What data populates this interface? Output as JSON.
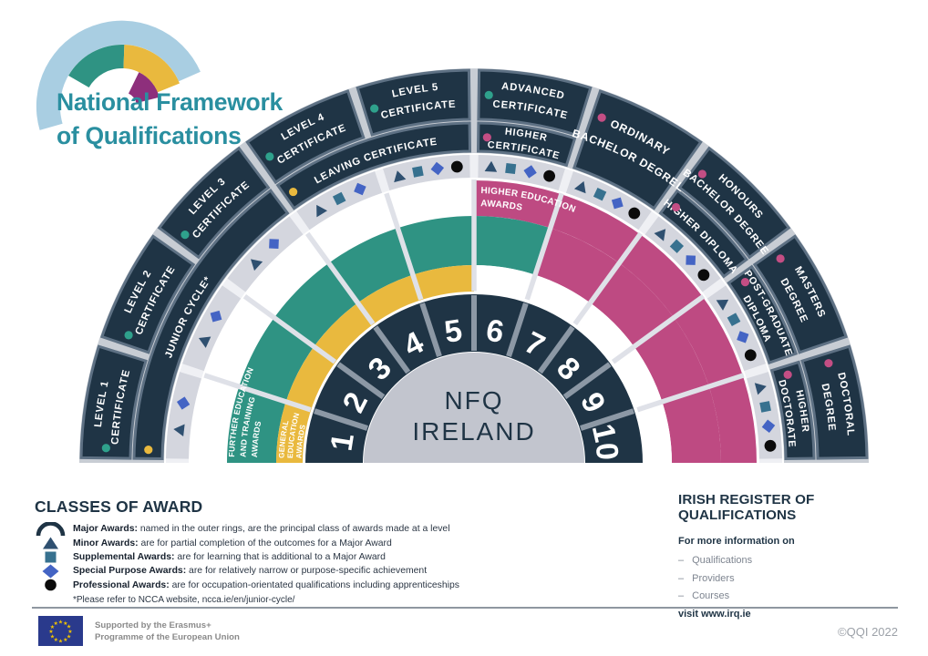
{
  "logo": {
    "title_line1": "National Framework",
    "title_line2": "of Qualifications"
  },
  "fan": {
    "center": {
      "line1": "NFQ",
      "line2": "IRELAND"
    },
    "levels": [
      "1",
      "2",
      "3",
      "4",
      "5",
      "6",
      "7",
      "8",
      "9",
      "10"
    ],
    "outer_ring": [
      {
        "label_lines": [
          "LEVEL 1",
          "CERTIFICATE"
        ],
        "level_start": 1,
        "level_end": 1,
        "dot": "teal",
        "merged": false
      },
      {
        "label_lines": [
          "LEVEL 2",
          "CERTIFICATE"
        ],
        "level_start": 2,
        "level_end": 2,
        "dot": "teal",
        "merged": false
      },
      {
        "label_lines": [
          "LEVEL 3",
          "CERTIFICATE"
        ],
        "level_start": 3,
        "level_end": 3,
        "dot": "teal",
        "merged": false
      },
      {
        "label_lines": [
          "LEVEL 4",
          "CERTIFICATE"
        ],
        "level_start": 4,
        "level_end": 4,
        "dot": "teal",
        "merged": false
      },
      {
        "label_lines": [
          "LEVEL 5",
          "CERTIFICATE"
        ],
        "level_start": 5,
        "level_end": 5,
        "dot": "teal",
        "merged": false
      },
      {
        "label_lines": [
          "ADVANCED",
          "CERTIFICATE"
        ],
        "level_start": 6,
        "level_end": 6,
        "dot": "teal",
        "merged": false
      },
      {
        "label_lines": [
          "ORDINARY",
          "BACHELOR DEGREE"
        ],
        "level_start": 7,
        "level_end": 7,
        "dot": "pink",
        "merged": true
      },
      {
        "label_lines": [
          "HONOURS",
          "BACHELOR DEGREE"
        ],
        "level_start": 8,
        "level_end": 8,
        "dot": "pink",
        "merged": false
      },
      {
        "label_lines": [
          "MASTERS",
          "DEGREE"
        ],
        "level_start": 9,
        "level_end": 9,
        "dot": "pink",
        "merged": false
      },
      {
        "label_lines": [
          "DOCTORAL",
          "DEGREE"
        ],
        "level_start": 10,
        "level_end": 10,
        "dot": "pink",
        "merged": false
      }
    ],
    "second_ring": [
      {
        "label_lines": [
          "JUNIOR CYCLE*"
        ],
        "level_start": 1,
        "level_end": 3,
        "dot": "yellow"
      },
      {
        "label_lines": [
          "LEAVING CERTIFICATE"
        ],
        "level_start": 4,
        "level_end": 5,
        "dot": "yellow"
      },
      {
        "label_lines": [
          "HIGHER",
          "CERTIFICATE"
        ],
        "level_start": 6,
        "level_end": 6,
        "dot": "pink"
      },
      {
        "label_lines": [
          "HIGHER DIPLOMA"
        ],
        "level_start": 8,
        "level_end": 8,
        "dot": "pink"
      },
      {
        "label_lines": [
          "POST-GRADUATE",
          "DIPLOMA"
        ],
        "level_start": 9,
        "level_end": 9,
        "dot": "pink"
      },
      {
        "label_lines": [
          "HIGHER",
          "DOCTORATE"
        ],
        "level_start": 10,
        "level_end": 10,
        "dot": "pink"
      }
    ],
    "bands": [
      {
        "band": "A",
        "level_start": 1,
        "level_end": 5,
        "color_key": "white",
        "label_lines": []
      },
      {
        "band": "A",
        "level_start": 6,
        "level_end": 10,
        "color_key": "magenta",
        "label_lines": [
          "HIGHER EDUCATION",
          "AWARDS"
        ]
      },
      {
        "band": "B",
        "level_start": 1,
        "level_end": 6,
        "color_key": "green",
        "label_lines": [
          "FURTHER EDUCATION",
          "AND TRAINING",
          "AWARDS"
        ]
      },
      {
        "band": "B",
        "level_start": 7,
        "level_end": 10,
        "color_key": "magenta",
        "label_lines": []
      },
      {
        "band": "C",
        "level_start": 1,
        "level_end": 5,
        "color_key": "yellow",
        "label_lines": [
          "GENERAL",
          "EDUCATION",
          "AWARDS"
        ]
      },
      {
        "band": "C",
        "level_start": 6,
        "level_end": 10,
        "color_key": "white",
        "label_lines": []
      }
    ],
    "level_awards": [
      {
        "level": 1,
        "icons": [
          "minor",
          "special"
        ]
      },
      {
        "level": 2,
        "icons": [
          "minor",
          "special"
        ]
      },
      {
        "level": 3,
        "icons": [
          "minor",
          "special"
        ]
      },
      {
        "level": 4,
        "icons": [
          "minor",
          "supplemental",
          "special"
        ]
      },
      {
        "level": 5,
        "icons": [
          "minor",
          "supplemental",
          "special",
          "professional"
        ]
      },
      {
        "level": 6,
        "icons": [
          "minor",
          "supplemental",
          "special",
          "professional"
        ]
      },
      {
        "level": 7,
        "icons": [
          "minor",
          "supplemental",
          "special",
          "professional"
        ]
      },
      {
        "level": 8,
        "icons": [
          "minor",
          "supplemental",
          "special",
          "professional"
        ]
      },
      {
        "level": 9,
        "icons": [
          "minor",
          "supplemental",
          "special",
          "professional"
        ]
      },
      {
        "level": 10,
        "icons": [
          "minor",
          "supplemental",
          "special",
          "professional"
        ]
      }
    ]
  },
  "legend": {
    "title": "CLASSES OF AWARD",
    "items": [
      {
        "icon": "major-arc",
        "label": "Major Awards:",
        "text": "named in the outer rings, are the principal class of awards made at a level"
      },
      {
        "icon": "minor-triangle",
        "label": "Minor Awards:",
        "text": "are for partial completion of the outcomes for a Major Award"
      },
      {
        "icon": "supplemental-square",
        "label": "Supplemental Awards:",
        "text": "are for learning that is additional to a Major Award"
      },
      {
        "icon": "special-purpose-diamond",
        "label": "Special Purpose Awards:",
        "text": "are for relatively narrow or purpose-specific achievement"
      },
      {
        "icon": "professional-circle",
        "label": "Professional Awards:",
        "text": "are for occupation-orientated qualifications including apprenticeships"
      }
    ],
    "footnote": "*Please refer to NCCA website, ncca.ie/en/junior-cycle/"
  },
  "register": {
    "title": "IRISH REGISTER OF QUALIFICATIONS",
    "intro": "For more information on",
    "items": [
      "Qualifications",
      "Providers",
      "Courses"
    ],
    "visit": "visit www.irq.ie"
  },
  "footer": {
    "eu_line1": "Supported by the Erasmus+",
    "eu_line2": "Programme of the European Union",
    "copyright": "©QQI 2022"
  },
  "colors": {
    "navy": "#1F3445",
    "segment_stroke": "#5E7184",
    "ring_divider": "#C8CDD4",
    "icons_ring": "#D4D6DE",
    "icons_ring_divider": "#EFF0F4",
    "green": "#2F9383",
    "yellow": "#E9B93E",
    "magenta": "#BE4A82",
    "spoke": "#DFE1E8",
    "number_divider": "#8C98A5",
    "center_gray": "#C2C5CE",
    "dot_teal": "#2FA18C",
    "dot_yellow": "#E9B93E",
    "dot_pink": "#C44E84",
    "title_teal": "#2A8FA0",
    "logo_blue": "#A9CEE2",
    "logo_purple": "#8E2F7C",
    "icon_minor": "#2F5070",
    "icon_supplemental": "#37718F",
    "icon_special": "#4464C4",
    "icon_professional": "#0B0B0B",
    "eu_blue": "#2A3A8C",
    "eu_star": "#F2C500"
  }
}
